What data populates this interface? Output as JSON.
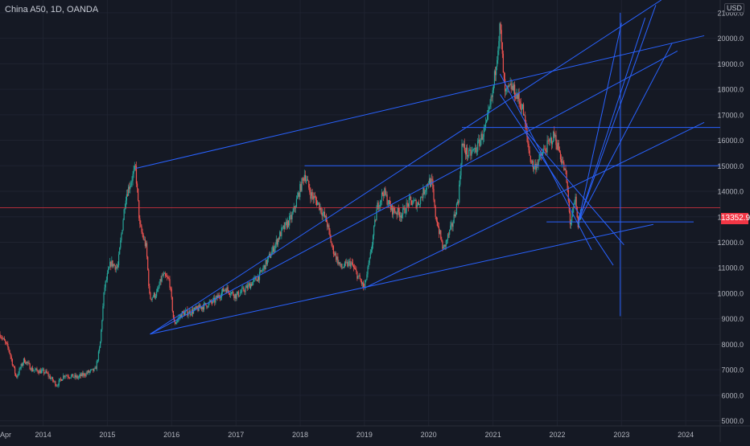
{
  "header": {
    "symbol_title": "China A50, 1D, OANDA",
    "currency": "USD"
  },
  "price_tag": {
    "value": "13352.9",
    "color": "#f23645"
  },
  "colors": {
    "background": "#151924",
    "grid": "#1f2330",
    "axis_text": "#b2b5be",
    "drawing": "#2962ff",
    "up": "#26a69a",
    "down": "#ef5350"
  },
  "chart_data": {
    "type": "candlestick",
    "symbol": "China A50",
    "interval": "1D",
    "source": "OANDA",
    "x_range": [
      "2013-05-01",
      "2024-07-15"
    ],
    "ylim": [
      4800,
      21500
    ],
    "grid": true,
    "x_tick_labels": [
      {
        "date": "2013-04-01",
        "label": "Apr"
      },
      {
        "date": "2014-01-01",
        "label": "2014"
      },
      {
        "date": "2015-01-01",
        "label": "2015"
      },
      {
        "date": "2016-01-01",
        "label": "2016"
      },
      {
        "date": "2017-01-01",
        "label": "2017"
      },
      {
        "date": "2018-01-01",
        "label": "2018"
      },
      {
        "date": "2019-01-01",
        "label": "2019"
      },
      {
        "date": "2020-01-01",
        "label": "2020"
      },
      {
        "date": "2021-01-01",
        "label": "2021"
      },
      {
        "date": "2022-01-01",
        "label": "2022"
      },
      {
        "date": "2023-01-01",
        "label": "2023"
      },
      {
        "date": "2024-01-01",
        "label": "2024"
      }
    ],
    "y_tick_labels": [
      "5000.0",
      "6000.0",
      "7000.0",
      "8000.0",
      "9000.0",
      "10000.0",
      "11000.0",
      "12000.0",
      "13000.0",
      "14000.0",
      "15000.0",
      "16000.0",
      "17000.0",
      "18000.0",
      "19000.0",
      "20000.0",
      "21000.0"
    ],
    "y_tick_values": [
      5000,
      6000,
      7000,
      8000,
      9000,
      10000,
      11000,
      12000,
      13000,
      14000,
      15000,
      16000,
      17000,
      18000,
      19000,
      20000,
      21000
    ],
    "last_price": 13352.9,
    "price_path": [
      [
        "2013-05-01",
        8400
      ],
      [
        "2013-06-20",
        7800
      ],
      [
        "2013-08-01",
        6700
      ],
      [
        "2013-09-15",
        7400
      ],
      [
        "2013-11-01",
        7000
      ],
      [
        "2014-01-15",
        6900
      ],
      [
        "2014-03-20",
        6400
      ],
      [
        "2014-05-01",
        6800
      ],
      [
        "2014-07-15",
        6700
      ],
      [
        "2014-09-15",
        6900
      ],
      [
        "2014-10-25",
        7000
      ],
      [
        "2014-11-20",
        7900
      ],
      [
        "2014-12-15",
        10200
      ],
      [
        "2015-01-20",
        11200
      ],
      [
        "2015-03-01",
        11000
      ],
      [
        "2015-04-15",
        13800
      ],
      [
        "2015-05-10",
        14300
      ],
      [
        "2015-06-10",
        14900
      ],
      [
        "2015-07-05",
        12600
      ],
      [
        "2015-08-10",
        11800
      ],
      [
        "2015-08-30",
        9800
      ],
      [
        "2015-10-10",
        10000
      ],
      [
        "2015-11-10",
        10700
      ],
      [
        "2015-12-20",
        10500
      ],
      [
        "2016-01-15",
        8800
      ],
      [
        "2016-03-01",
        9200
      ],
      [
        "2016-05-01",
        9300
      ],
      [
        "2016-07-01",
        9500
      ],
      [
        "2016-09-01",
        9700
      ],
      [
        "2016-11-01",
        10200
      ],
      [
        "2017-01-01",
        9900
      ],
      [
        "2017-03-01",
        10200
      ],
      [
        "2017-05-15",
        10700
      ],
      [
        "2017-07-15",
        11500
      ],
      [
        "2017-09-15",
        12400
      ],
      [
        "2017-11-15",
        13000
      ],
      [
        "2018-01-26",
        14700
      ],
      [
        "2018-03-01",
        13900
      ],
      [
        "2018-04-15",
        13500
      ],
      [
        "2018-06-01",
        12800
      ],
      [
        "2018-07-01",
        11800
      ],
      [
        "2018-08-20",
        11000
      ],
      [
        "2018-10-15",
        11200
      ],
      [
        "2018-12-31",
        10200
      ],
      [
        "2019-01-31",
        11300
      ],
      [
        "2019-03-15",
        13400
      ],
      [
        "2019-04-20",
        14000
      ],
      [
        "2019-06-01",
        13300
      ],
      [
        "2019-08-01",
        13100
      ],
      [
        "2019-09-15",
        13600
      ],
      [
        "2019-11-01",
        13500
      ],
      [
        "2019-12-31",
        14400
      ],
      [
        "2020-01-20",
        14300
      ],
      [
        "2020-02-05",
        13200
      ],
      [
        "2020-03-24",
        11700
      ],
      [
        "2020-05-15",
        12700
      ],
      [
        "2020-06-20",
        13800
      ],
      [
        "2020-07-08",
        15800
      ],
      [
        "2020-08-15",
        15400
      ],
      [
        "2020-10-01",
        15700
      ],
      [
        "2020-11-25",
        16600
      ],
      [
        "2020-12-31",
        17900
      ],
      [
        "2021-02-10",
        20500
      ],
      [
        "2021-03-09",
        17800
      ],
      [
        "2021-04-15",
        18100
      ],
      [
        "2021-05-20",
        17700
      ],
      [
        "2021-06-20",
        17200
      ],
      [
        "2021-07-28",
        15400
      ],
      [
        "2021-08-20",
        14900
      ],
      [
        "2021-10-20",
        15600
      ],
      [
        "2021-12-15",
        16200
      ],
      [
        "2022-01-15",
        15500
      ],
      [
        "2022-02-20",
        14600
      ],
      [
        "2022-03-16",
        12700
      ],
      [
        "2022-04-15",
        13700
      ],
      [
        "2022-04-27",
        12600
      ],
      [
        "2022-05-20",
        13400
      ]
    ],
    "drawings": [
      {
        "type": "trend_line",
        "from": [
          "2015-06-12",
          14900
        ],
        "to": [
          "2024-04-15",
          20100
        ]
      },
      {
        "type": "trend_line",
        "from": [
          "2015-09-01",
          8400
        ],
        "to": [
          "2023-11-15",
          19500
        ]
      },
      {
        "type": "trend_line",
        "from": [
          "2015-09-01",
          8400
        ],
        "to": [
          "2023-08-15",
          21500
        ]
      },
      {
        "type": "trend_line",
        "from": [
          "2015-09-01",
          8400
        ],
        "to": [
          "2023-07-01",
          12700
        ]
      },
      {
        "type": "trend_line",
        "from": [
          "2018-12-31",
          10200
        ],
        "to": [
          "2024-04-15",
          16700
        ]
      },
      {
        "type": "horizontal_segment",
        "from": [
          "2018-01-26",
          15000
        ],
        "to": [
          "2024-07-15",
          15000
        ]
      },
      {
        "type": "horizontal_segment",
        "from": [
          "2020-07-08",
          16500
        ],
        "to": [
          "2024-07-15",
          16500
        ]
      },
      {
        "type": "horizontal_segment",
        "from": [
          "2021-11-01",
          12800
        ],
        "to": [
          "2024-02-15",
          12800
        ]
      },
      {
        "type": "trend_line",
        "from": [
          "2021-02-10",
          18600
        ],
        "to": [
          "2022-07-15",
          11700
        ]
      },
      {
        "type": "trend_line",
        "from": [
          "2021-02-10",
          17800
        ],
        "to": [
          "2022-11-15",
          11100
        ]
      },
      {
        "type": "trend_line",
        "from": [
          "2021-07-01",
          16400
        ],
        "to": [
          "2023-01-15",
          11900
        ]
      },
      {
        "type": "fan_line",
        "from": [
          "2022-05-01",
          12800
        ],
        "to": [
          "2023-01-01",
          20600
        ]
      },
      {
        "type": "fan_line",
        "from": [
          "2022-05-01",
          12800
        ],
        "to": [
          "2023-05-15",
          20800
        ]
      },
      {
        "type": "fan_line",
        "from": [
          "2022-05-01",
          12800
        ],
        "to": [
          "2023-10-15",
          19800
        ]
      },
      {
        "type": "fan_line",
        "from": [
          "2022-05-01",
          12800
        ],
        "to": [
          "2023-07-15",
          21300
        ]
      },
      {
        "type": "vertical_segment",
        "from": [
          "2022-12-25",
          21000
        ],
        "to": [
          "2022-12-25",
          9100
        ]
      }
    ]
  }
}
